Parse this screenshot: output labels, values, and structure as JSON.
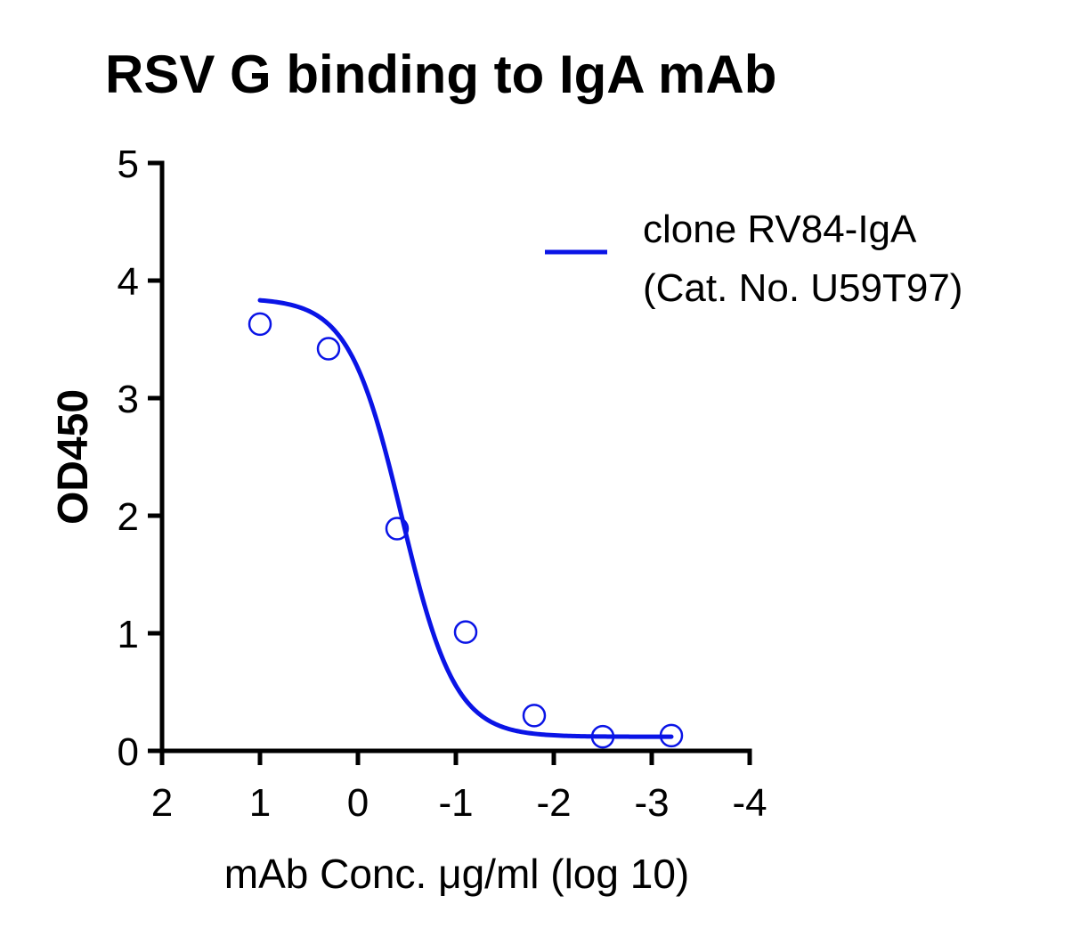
{
  "chart_data": {
    "type": "scatter",
    "title": "RSV G binding to IgA mAb",
    "xlabel": "mAb Conc. μg/ml (log 10)",
    "ylabel": "OD450",
    "xlim": [
      2,
      -4
    ],
    "ylim": [
      0,
      5
    ],
    "x_ticks": [
      2,
      1,
      0,
      -1,
      -2,
      -3,
      -4
    ],
    "x_tick_labels": [
      "2",
      "1",
      "0",
      "-1",
      "-2",
      "-3",
      "-4"
    ],
    "y_ticks": [
      0,
      1,
      2,
      3,
      4,
      5
    ],
    "y_tick_labels": [
      "0",
      "1",
      "2",
      "3",
      "4",
      "5"
    ],
    "x_axis_reversed": true,
    "grid": false,
    "legend_position": "top-right",
    "legend_lines": [
      "clone RV84-IgA",
      "(Cat. No. U59T97)"
    ],
    "series": [
      {
        "name": "clone RV84-IgA (Cat. No. U59T97)",
        "color": "#0a14e6",
        "marker": "open-circle",
        "points": [
          {
            "x": 1.0,
            "y": 3.63
          },
          {
            "x": 0.3,
            "y": 3.42
          },
          {
            "x": -0.4,
            "y": 1.89
          },
          {
            "x": -1.1,
            "y": 1.01
          },
          {
            "x": -1.8,
            "y": 0.3
          },
          {
            "x": -2.5,
            "y": 0.12
          },
          {
            "x": -3.2,
            "y": 0.13
          }
        ],
        "fit": {
          "type": "4PL",
          "bottom": 0.12,
          "top": 3.85,
          "log_ec50": -0.45,
          "hill": 1.6,
          "x_range": [
            1.0,
            -3.2
          ]
        }
      }
    ]
  }
}
